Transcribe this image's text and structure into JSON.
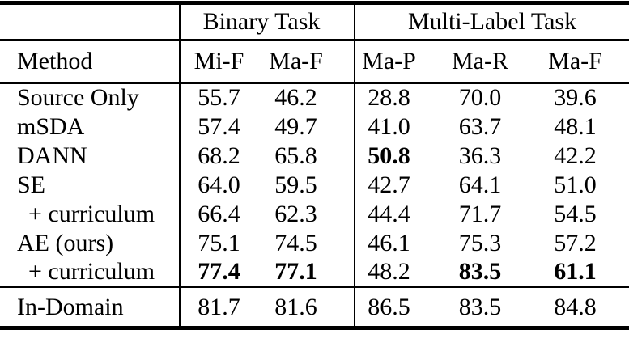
{
  "table": {
    "header_groups": [
      {
        "label": "Binary Task",
        "span": 2
      },
      {
        "label": "Multi-Label Task",
        "span": 3
      }
    ],
    "columns": [
      "Method",
      "Mi-F",
      "Ma-F",
      "Ma-P",
      "Ma-R",
      "Ma-F"
    ],
    "rows": [
      {
        "method": "Source Only",
        "indent": false,
        "values": [
          "55.7",
          "46.2",
          "28.8",
          "70.0",
          "39.6"
        ],
        "bold": [
          false,
          false,
          false,
          false,
          false
        ]
      },
      {
        "method": "mSDA",
        "indent": false,
        "values": [
          "57.4",
          "49.7",
          "41.0",
          "63.7",
          "48.1"
        ],
        "bold": [
          false,
          false,
          false,
          false,
          false
        ]
      },
      {
        "method": "DANN",
        "indent": false,
        "values": [
          "68.2",
          "65.8",
          "50.8",
          "36.3",
          "42.2"
        ],
        "bold": [
          false,
          false,
          true,
          false,
          false
        ]
      },
      {
        "method": "SE",
        "indent": false,
        "values": [
          "64.0",
          "59.5",
          "42.7",
          "64.1",
          "51.0"
        ],
        "bold": [
          false,
          false,
          false,
          false,
          false
        ]
      },
      {
        "method": "+ curriculum",
        "indent": true,
        "values": [
          "66.4",
          "62.3",
          "44.4",
          "71.7",
          "54.5"
        ],
        "bold": [
          false,
          false,
          false,
          false,
          false
        ]
      },
      {
        "method": "AE (ours)",
        "indent": false,
        "values": [
          "75.1",
          "74.5",
          "46.1",
          "75.3",
          "57.2"
        ],
        "bold": [
          false,
          false,
          false,
          false,
          false
        ]
      },
      {
        "method": "+ curriculum",
        "indent": true,
        "values": [
          "77.4",
          "77.1",
          "48.2",
          "83.5",
          "61.1"
        ],
        "bold": [
          true,
          true,
          false,
          true,
          true
        ]
      }
    ],
    "footer": {
      "method": "In-Domain",
      "values": [
        "81.7",
        "81.6",
        "86.5",
        "83.5",
        "84.8"
      ]
    },
    "colors": {
      "text": "#000000",
      "rule": "#000000",
      "background": "#ffffff"
    }
  }
}
